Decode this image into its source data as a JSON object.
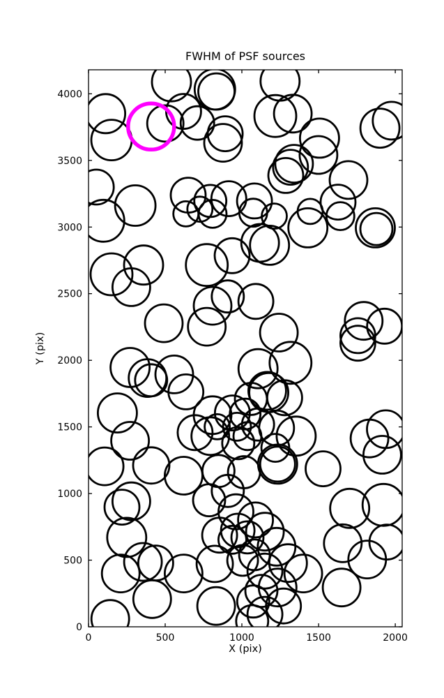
{
  "chart_data": {
    "type": "scatter",
    "title": "FWHM of PSF sources",
    "xlabel": "X (pix)",
    "ylabel": "Y (pix)",
    "xlim": [
      0,
      2045
    ],
    "ylim": [
      0,
      4180
    ],
    "xticks": [
      0,
      500,
      1000,
      1500,
      2000
    ],
    "yticks": [
      0,
      500,
      1000,
      1500,
      2000,
      2500,
      3000,
      3500,
      4000
    ],
    "grid": false,
    "legend": "none",
    "marker_fill": "none",
    "marker_color": "#000000",
    "marker_linewidth": 2.8,
    "axis_color": "#000000",
    "background_color": "#ffffff",
    "point_format": [
      "x_pix",
      "y_pix",
      "marker_radius_screen_px"
    ],
    "highlight": {
      "x": 408,
      "y": 3754,
      "r": 33,
      "color": "#ff00ff",
      "linewidth": 5.5
    },
    "points": [
      [
        112,
        3851,
        28
      ],
      [
        150,
        3653,
        29
      ],
      [
        501,
        3777,
        26
      ],
      [
        541,
        4090,
        28
      ],
      [
        620,
        3868,
        25
      ],
      [
        710,
        3781,
        24
      ],
      [
        824,
        4034,
        29
      ],
      [
        834,
        4017,
        26
      ],
      [
        877,
        3632,
        27
      ],
      [
        51,
        3300,
        25
      ],
      [
        305,
        3161,
        29
      ],
      [
        650,
        3239,
        25
      ],
      [
        794,
        3196,
        23
      ],
      [
        915,
        3213,
        25
      ],
      [
        891,
        3700,
        25
      ],
      [
        1249,
        4095,
        28
      ],
      [
        1218,
        3833,
        30
      ],
      [
        1332,
        3851,
        27
      ],
      [
        1900,
        3742,
        28
      ],
      [
        1976,
        3798,
        27
      ],
      [
        1506,
        3667,
        28
      ],
      [
        1499,
        3541,
        27
      ],
      [
        1340,
        3475,
        27
      ],
      [
        1317,
        3449,
        25
      ],
      [
        1286,
        3387,
        25
      ],
      [
        1082,
        3196,
        25
      ],
      [
        1695,
        3353,
        27
      ],
      [
        1627,
        3187,
        25
      ],
      [
        97,
        3047,
        30
      ],
      [
        150,
        2645,
        30
      ],
      [
        279,
        2549,
        27
      ],
      [
        359,
        2715,
        28
      ],
      [
        491,
        2278,
        27
      ],
      [
        635,
        3099,
        18
      ],
      [
        726,
        3134,
        18
      ],
      [
        809,
        3099,
        20
      ],
      [
        771,
        2715,
        30
      ],
      [
        936,
        2785,
        25
      ],
      [
        809,
        2409,
        27
      ],
      [
        908,
        2479,
        23
      ],
      [
        771,
        2252,
        27
      ],
      [
        1074,
        3108,
        20
      ],
      [
        1211,
        3082,
        18
      ],
      [
        1430,
        2994,
        28
      ],
      [
        1445,
        3117,
        18
      ],
      [
        1642,
        3082,
        20
      ],
      [
        1870,
        2994,
        28
      ],
      [
        1877,
        2985,
        23
      ],
      [
        1180,
        2863,
        28
      ],
      [
        1119,
        2881,
        27
      ],
      [
        1091,
        2442,
        25
      ],
      [
        1241,
        2208,
        27
      ],
      [
        1794,
        2296,
        27
      ],
      [
        1930,
        2256,
        25
      ],
      [
        1756,
        2185,
        25
      ],
      [
        271,
        1946,
        28
      ],
      [
        385,
        1867,
        27
      ],
      [
        408,
        1850,
        23
      ],
      [
        559,
        1894,
        27
      ],
      [
        635,
        1763,
        25
      ],
      [
        188,
        1605,
        28
      ],
      [
        271,
        1396,
        27
      ],
      [
        105,
        1204,
        27
      ],
      [
        409,
        1211,
        26
      ],
      [
        620,
        1134,
        27
      ],
      [
        809,
        1588,
        27
      ],
      [
        794,
        1431,
        27
      ],
      [
        839,
        1501,
        18
      ],
      [
        938,
        1605,
        25
      ],
      [
        968,
        1501,
        20
      ],
      [
        976,
        1378,
        23
      ],
      [
        847,
        1169,
        23
      ],
      [
        695,
        1457,
        25
      ],
      [
        1317,
        1981,
        30
      ],
      [
        1756,
        2128,
        25
      ],
      [
        1105,
        1937,
        28
      ],
      [
        1279,
        1719,
        25
      ],
      [
        1165,
        1771,
        27
      ],
      [
        1175,
        1758,
        28
      ],
      [
        1059,
        1710,
        23
      ],
      [
        1021,
        1597,
        22
      ],
      [
        1105,
        1518,
        23
      ],
      [
        1036,
        1431,
        20
      ],
      [
        1226,
        1492,
        25
      ],
      [
        1354,
        1431,
        28
      ],
      [
        1218,
        1343,
        20
      ],
      [
        1233,
        1221,
        28
      ],
      [
        1233,
        1221,
        25
      ],
      [
        1014,
        1160,
        23
      ],
      [
        1529,
        1186,
        25
      ],
      [
        1832,
        1413,
        27
      ],
      [
        1938,
        1483,
        27
      ],
      [
        1915,
        1291,
        27
      ],
      [
        218,
        898,
        25
      ],
      [
        279,
        942,
        27
      ],
      [
        249,
        671,
        28
      ],
      [
        355,
        487,
        27
      ],
      [
        438,
        479,
        25
      ],
      [
        210,
        400,
        27
      ],
      [
        415,
        208,
        27
      ],
      [
        620,
        400,
        27
      ],
      [
        142,
        59,
        27
      ],
      [
        786,
        950,
        23
      ],
      [
        908,
        1020,
        23
      ],
      [
        961,
        863,
        25
      ],
      [
        855,
        688,
        25
      ],
      [
        823,
        472,
        26
      ],
      [
        938,
        653,
        20
      ],
      [
        832,
        156,
        27
      ],
      [
        1703,
        889,
        28
      ],
      [
        1923,
        915,
        30
      ],
      [
        1945,
        636,
        25
      ],
      [
        1658,
        627,
        27
      ],
      [
        1817,
        505,
        27
      ],
      [
        1650,
        295,
        27
      ],
      [
        1089,
        802,
        25
      ],
      [
        1150,
        714,
        27
      ],
      [
        1036,
        671,
        23
      ],
      [
        1226,
        601,
        27
      ],
      [
        1082,
        540,
        22
      ],
      [
        1301,
        478,
        27
      ],
      [
        1150,
        418,
        25
      ],
      [
        1400,
        400,
        27
      ],
      [
        1233,
        295,
        27
      ],
      [
        1127,
        269,
        23
      ],
      [
        1074,
        190,
        23
      ],
      [
        1271,
        156,
        25
      ],
      [
        1150,
        94,
        25
      ],
      [
        973,
        723,
        24
      ],
      [
        1005,
        498,
        22
      ],
      [
        1067,
        42,
        23
      ]
    ]
  }
}
